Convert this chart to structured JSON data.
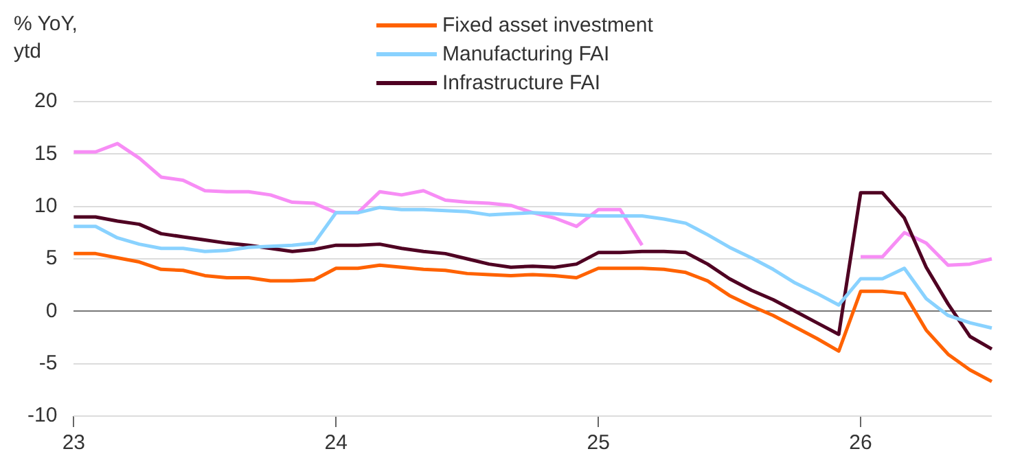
{
  "chart_data": {
    "type": "line",
    "ylabel": "% YoY, ytd",
    "categories": [
      "23",
      null,
      null,
      null,
      null,
      null,
      null,
      null,
      null,
      null,
      null,
      null,
      "24",
      null,
      null,
      null,
      null,
      null,
      null,
      null,
      null,
      null,
      null,
      null,
      "25",
      null,
      null,
      null,
      null,
      null,
      null,
      null,
      null,
      null,
      null,
      null,
      "26",
      null,
      null,
      null,
      null,
      null,
      null
    ],
    "series": [
      {
        "name": "Fixed asset investment",
        "color": "#ff6200",
        "values": [
          5.5,
          5.5,
          5.1,
          4.7,
          4.0,
          3.9,
          3.4,
          3.2,
          3.2,
          2.9,
          2.9,
          3.0,
          4.1,
          4.1,
          4.4,
          4.2,
          4.0,
          3.9,
          3.6,
          3.5,
          3.4,
          3.5,
          3.4,
          3.2,
          4.1,
          4.1,
          4.1,
          4.0,
          3.7,
          2.9,
          1.5,
          0.5,
          -0.4,
          -1.5,
          -2.6,
          -3.8,
          1.9,
          1.9,
          1.7,
          -1.8,
          -4.1,
          -5.6,
          -6.7
        ]
      },
      {
        "name": "Manufacturing FAI",
        "color": "#89d2ff",
        "values": [
          8.1,
          8.1,
          7.0,
          6.4,
          6.0,
          6.0,
          5.7,
          5.8,
          6.1,
          6.2,
          6.3,
          6.5,
          9.4,
          9.4,
          9.9,
          9.7,
          9.7,
          9.6,
          9.5,
          9.2,
          9.3,
          9.4,
          9.3,
          9.2,
          9.1,
          9.1,
          9.1,
          8.8,
          8.4,
          7.3,
          6.1,
          5.1,
          4.0,
          2.7,
          1.7,
          0.6,
          3.1,
          3.1,
          4.1,
          1.2,
          -0.4,
          -1.1,
          -1.6
        ]
      },
      {
        "name": "Infrastructure FAI",
        "color": "#4f0022",
        "values": [
          9.0,
          9.0,
          8.6,
          8.3,
          7.4,
          7.1,
          6.8,
          6.5,
          6.3,
          6.0,
          5.7,
          5.9,
          6.3,
          6.3,
          6.4,
          6.0,
          5.7,
          5.5,
          5.0,
          4.5,
          4.2,
          4.3,
          4.2,
          4.5,
          5.6,
          5.6,
          5.7,
          5.7,
          5.6,
          4.5,
          3.1,
          2.0,
          1.1,
          0.0,
          -1.1,
          -2.2,
          11.3,
          11.3,
          8.9,
          4.2,
          0.7,
          -2.4,
          -3.6
        ]
      },
      {
        "color": "#f78df5",
        "values": [
          15.2,
          15.2,
          16.0,
          14.6,
          12.8,
          12.5,
          11.5,
          11.4,
          11.4,
          11.1,
          10.4,
          10.3,
          9.4,
          9.4,
          11.4,
          11.1,
          11.5,
          10.6,
          10.4,
          10.3,
          10.1,
          9.4,
          8.9,
          8.1,
          9.7,
          9.7,
          6.3,
          null,
          null,
          null,
          null,
          null,
          null,
          null,
          null,
          null,
          5.2,
          5.2,
          7.5,
          6.5,
          4.4,
          4.5,
          5.0
        ]
      }
    ],
    "ylim": [
      -10,
      20
    ],
    "yticks": [
      -10,
      -5,
      0,
      5,
      10,
      15,
      20
    ],
    "grid": "y",
    "legend": "top",
    "marker": "none",
    "line_style": "solid"
  }
}
